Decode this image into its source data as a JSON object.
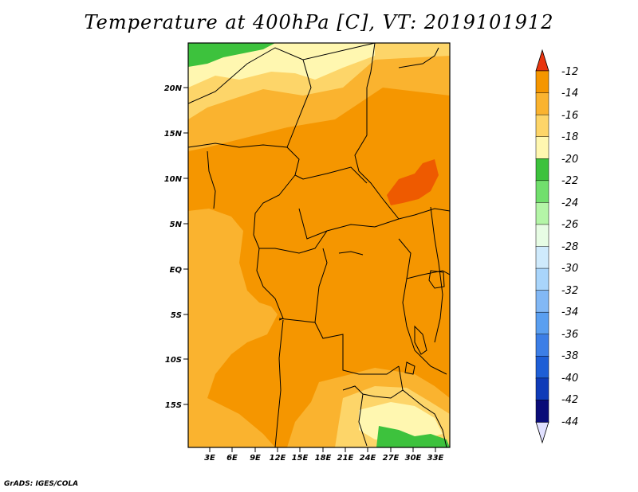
{
  "title": "Temperature at 400hPa [C], VT: 2019101912",
  "credit": "GrADS: IGES/COLA",
  "map": {
    "lat_labels": [
      "20N",
      "15N",
      "10N",
      "5N",
      "EQ",
      "5S",
      "10S",
      "15S"
    ],
    "lon_labels": [
      "3E",
      "6E",
      "9E",
      "12E",
      "15E",
      "18E",
      "21E",
      "24E",
      "27E",
      "30E",
      "33E"
    ]
  },
  "colorbar": {
    "labels": [
      "-12",
      "-14",
      "-16",
      "-18",
      "-20",
      "-22",
      "-24",
      "-26",
      "-28",
      "-30",
      "-32",
      "-34",
      "-36",
      "-38",
      "-40",
      "-42",
      "-44"
    ],
    "top_arrow_color": "#e8350f",
    "bottom_arrow_color": "#e0e0ff",
    "colors": [
      "#ee5a00",
      "#f59600",
      "#fab32f",
      "#fdd569",
      "#fff7b0",
      "#3dc23d",
      "#71df6d",
      "#b4f5a7",
      "#e7fce4",
      "#cfeafc",
      "#a9d5fb",
      "#82b8f5",
      "#5a9ff0",
      "#3c7ee6",
      "#1e5ed6",
      "#0f3bb8",
      "#0a0c78"
    ]
  },
  "palette": {
    "orange": "#f59600",
    "light_orange": "#fab32f",
    "yellow": "#fdd569",
    "pale_yellow": "#fff7b0",
    "green": "#3dc23d",
    "red_orange": "#ee5a00"
  }
}
